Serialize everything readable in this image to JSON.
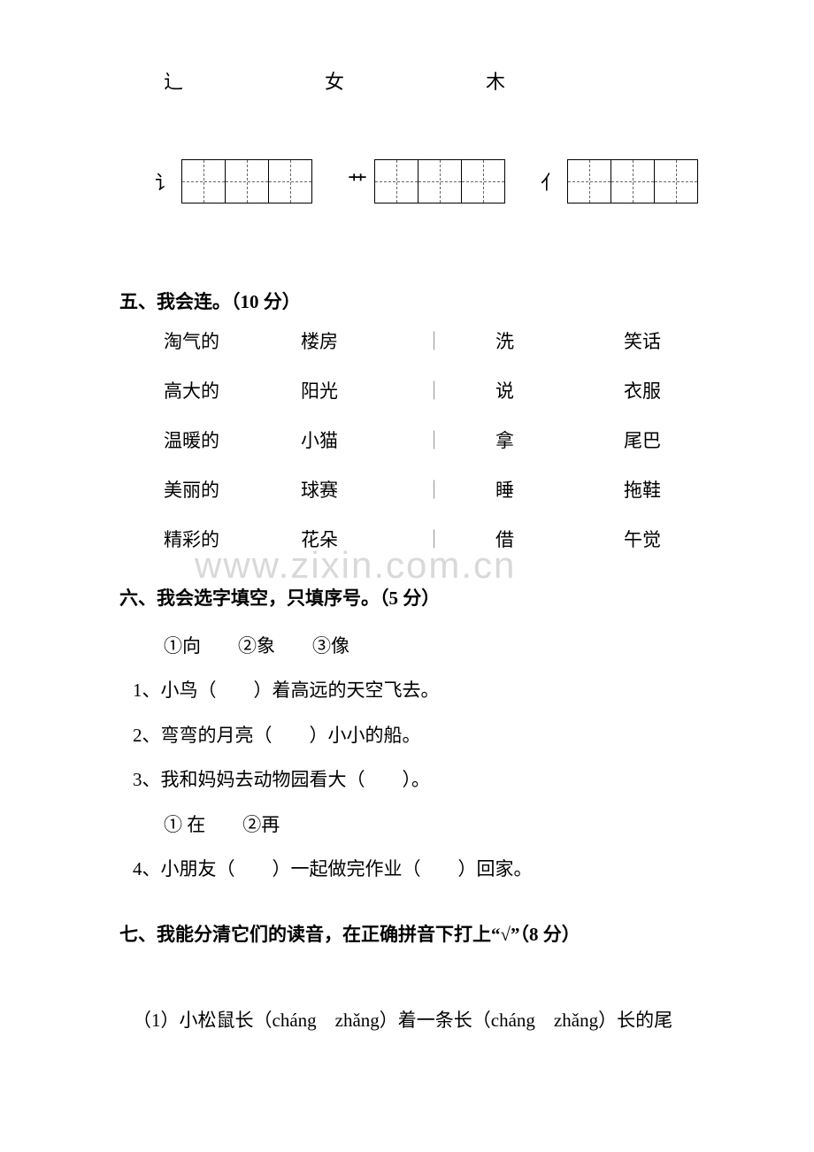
{
  "radicals_row1": [
    "辶",
    "女",
    "木"
  ],
  "radicals_row2": [
    {
      "label": "讠",
      "cells": 3
    },
    {
      "label": "艹",
      "cells": 3
    },
    {
      "label": "亻",
      "cells": 3
    }
  ],
  "s5": {
    "title": "五、我会连。（10 分）",
    "left_pairs": [
      [
        "淘气的",
        "楼房"
      ],
      [
        "高大的",
        "阳光"
      ],
      [
        "温暖的",
        "小猫"
      ],
      [
        "美丽的",
        "球赛"
      ],
      [
        "精彩的",
        "花朵"
      ]
    ],
    "right_pairs": [
      [
        "洗",
        "笑话"
      ],
      [
        "说",
        "衣服"
      ],
      [
        "拿",
        "尾巴"
      ],
      [
        "睡",
        "拖鞋"
      ],
      [
        "借",
        "午觉"
      ]
    ],
    "separator": "｜"
  },
  "watermark": "www.zixin.com.cn",
  "s6": {
    "title": "六、我会选字填空，只填序号。（5 分）",
    "options1": "①向　　②象　　③像",
    "q1": "1、小鸟（　　）着高远的天空飞去。",
    "q2": "2、弯弯的月亮（　　）小小的船。",
    "q3": "3、我和妈妈去动物园看大（　　）。",
    "options2": "① 在　　②再",
    "q4": "4、小朋友（　　）一起做完作业（　　）回家。"
  },
  "s7": {
    "title": "七、我能分清它们的读音，在正确拼音下打上“√”（8 分）",
    "q1": "（1）小松鼠长（cháng　zhǎng）着一条长（cháng　zhǎng）长的尾"
  }
}
